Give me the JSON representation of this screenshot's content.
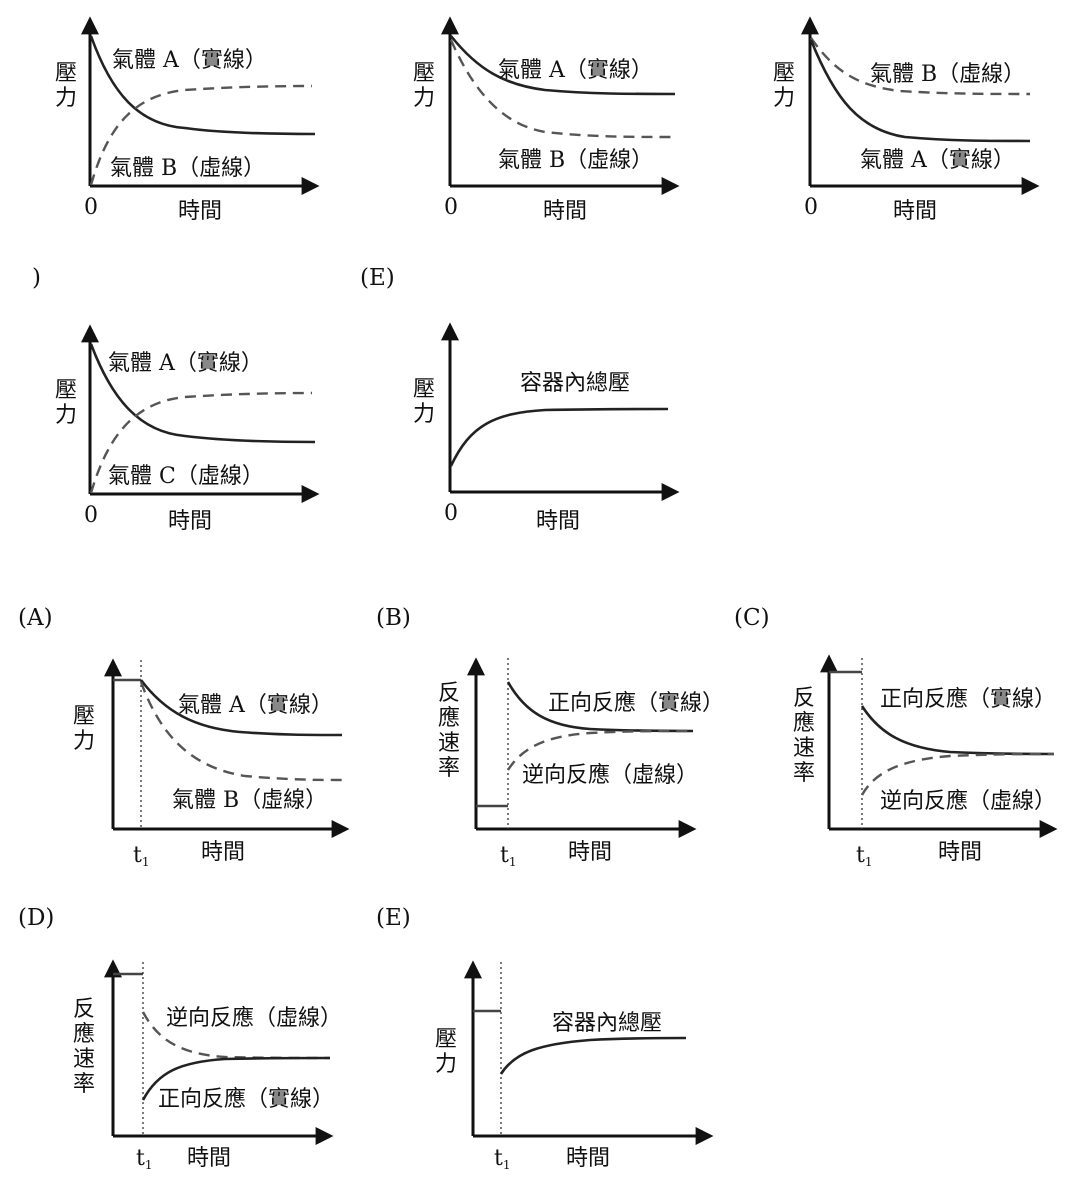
{
  "option_labels": {
    "top_partial": ")",
    "top_e": "(E)",
    "a": "(A)",
    "b": "(B)",
    "c": "(C)",
    "d": "(D)",
    "e": "(E)"
  },
  "common": {
    "pressure": "壓力",
    "rate": "反應速率",
    "time": "時間",
    "origin": "0",
    "t1": "t",
    "t1_sub": "1"
  },
  "curves": {
    "gas_a": "氣體 A（實線）",
    "gas_b": "氣體 B（虛線）",
    "gas_c": "氣體 C（虛線）",
    "total_pressure": "容器內總壓",
    "forward": "正向反應（實線）",
    "reverse": "逆向反應（虛線）"
  }
}
